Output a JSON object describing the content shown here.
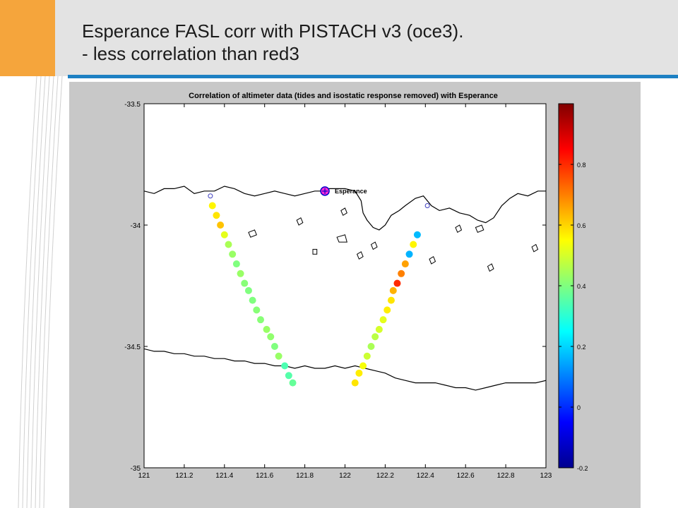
{
  "slide": {
    "title_line1": "Esperance FASL corr with PISTACH v3 (oce3).",
    "title_line2": "- less correlation than red3",
    "colors": {
      "header_bg": "#e3e3e3",
      "orange": "#f5a53c",
      "blue": "#1d80c3"
    }
  },
  "chart_data": {
    "type": "scatter",
    "title": "Correlation of altimeter data (tides and isostatic response removed) with Esperance",
    "xlabel": "",
    "ylabel": "",
    "xlim": [
      121,
      123
    ],
    "ylim": [
      -35,
      -33.5
    ],
    "x_ticks": [
      "121",
      "121.2",
      "121.4",
      "121.6",
      "121.8",
      "122",
      "122.2",
      "122.4",
      "122.6",
      "122.8",
      "123"
    ],
    "y_ticks": [
      "-33.5",
      "-34",
      "-34.5",
      "-35"
    ],
    "grid": false,
    "colormap": "jet",
    "colorbar": {
      "min": -0.2,
      "max": 1.0,
      "ticks": [
        "0.8",
        "0.6",
        "0.4",
        "0.2",
        "0",
        "-0.2"
      ]
    },
    "station": {
      "name": "Esperance",
      "lon": 121.9,
      "lat": -33.86
    },
    "tracks": [
      {
        "points": [
          {
            "lon": 121.34,
            "lat": -33.92,
            "corr": 0.56
          },
          {
            "lon": 121.36,
            "lat": -33.96,
            "corr": 0.58
          },
          {
            "lon": 121.38,
            "lat": -34.0,
            "corr": 0.62
          },
          {
            "lon": 121.4,
            "lat": -34.04,
            "corr": 0.52
          },
          {
            "lon": 121.42,
            "lat": -34.08,
            "corr": 0.45
          },
          {
            "lon": 121.44,
            "lat": -34.12,
            "corr": 0.43
          },
          {
            "lon": 121.46,
            "lat": -34.16,
            "corr": 0.4
          },
          {
            "lon": 121.48,
            "lat": -34.2,
            "corr": 0.43
          },
          {
            "lon": 121.5,
            "lat": -34.24,
            "corr": 0.41
          },
          {
            "lon": 121.52,
            "lat": -34.27,
            "corr": 0.4
          },
          {
            "lon": 121.54,
            "lat": -34.31,
            "corr": 0.4
          },
          {
            "lon": 121.56,
            "lat": -34.35,
            "corr": 0.41
          },
          {
            "lon": 121.58,
            "lat": -34.39,
            "corr": 0.41
          },
          {
            "lon": 121.61,
            "lat": -34.43,
            "corr": 0.43
          },
          {
            "lon": 121.63,
            "lat": -34.46,
            "corr": 0.42
          },
          {
            "lon": 121.65,
            "lat": -34.5,
            "corr": 0.4
          },
          {
            "lon": 121.67,
            "lat": -34.54,
            "corr": 0.43
          },
          {
            "lon": 121.7,
            "lat": -34.58,
            "corr": 0.34
          },
          {
            "lon": 121.72,
            "lat": -34.62,
            "corr": 0.35
          },
          {
            "lon": 121.74,
            "lat": -34.65,
            "corr": 0.37
          }
        ]
      },
      {
        "points": [
          {
            "lon": 122.36,
            "lat": -34.04,
            "corr": 0.17
          },
          {
            "lon": 122.34,
            "lat": -34.08,
            "corr": 0.56
          },
          {
            "lon": 122.32,
            "lat": -34.12,
            "corr": 0.16
          },
          {
            "lon": 122.3,
            "lat": -34.16,
            "corr": 0.66
          },
          {
            "lon": 122.28,
            "lat": -34.2,
            "corr": 0.7
          },
          {
            "lon": 122.26,
            "lat": -34.24,
            "corr": 0.8
          },
          {
            "lon": 122.24,
            "lat": -34.27,
            "corr": 0.64
          },
          {
            "lon": 122.23,
            "lat": -34.31,
            "corr": 0.58
          },
          {
            "lon": 122.21,
            "lat": -34.35,
            "corr": 0.57
          },
          {
            "lon": 122.19,
            "lat": -34.39,
            "corr": 0.52
          },
          {
            "lon": 122.17,
            "lat": -34.43,
            "corr": 0.5
          },
          {
            "lon": 122.15,
            "lat": -34.46,
            "corr": 0.47
          },
          {
            "lon": 122.13,
            "lat": -34.5,
            "corr": 0.45
          },
          {
            "lon": 122.11,
            "lat": -34.54,
            "corr": 0.49
          },
          {
            "lon": 122.09,
            "lat": -34.58,
            "corr": 0.54
          },
          {
            "lon": 122.07,
            "lat": -34.61,
            "corr": 0.57
          },
          {
            "lon": 122.05,
            "lat": -34.65,
            "corr": 0.58
          }
        ]
      }
    ],
    "open_markers": [
      {
        "lon": 121.33,
        "lat": -33.88
      },
      {
        "lon": 122.41,
        "lat": -33.92
      }
    ],
    "coastline": [
      [
        121.0,
        -33.86
      ],
      [
        121.05,
        -33.87
      ],
      [
        121.1,
        -33.85
      ],
      [
        121.15,
        -33.85
      ],
      [
        121.2,
        -33.84
      ],
      [
        121.25,
        -33.87
      ],
      [
        121.3,
        -33.86
      ],
      [
        121.35,
        -33.86
      ],
      [
        121.4,
        -33.84
      ],
      [
        121.45,
        -33.85
      ],
      [
        121.5,
        -33.87
      ],
      [
        121.55,
        -33.88
      ],
      [
        121.6,
        -33.87
      ],
      [
        121.65,
        -33.86
      ],
      [
        121.7,
        -33.87
      ],
      [
        121.75,
        -33.88
      ],
      [
        121.8,
        -33.87
      ],
      [
        121.85,
        -33.86
      ],
      [
        121.88,
        -33.86
      ],
      [
        121.92,
        -33.85
      ],
      [
        122.0,
        -33.85
      ],
      [
        122.05,
        -33.86
      ],
      [
        122.08,
        -33.9
      ],
      [
        122.09,
        -33.95
      ],
      [
        122.11,
        -33.98
      ],
      [
        122.14,
        -34.01
      ],
      [
        122.17,
        -34.02
      ],
      [
        122.2,
        -34.0
      ],
      [
        122.23,
        -33.96
      ],
      [
        122.27,
        -33.94
      ],
      [
        122.3,
        -33.92
      ],
      [
        122.35,
        -33.89
      ],
      [
        122.39,
        -33.88
      ],
      [
        122.43,
        -33.92
      ],
      [
        122.47,
        -33.94
      ],
      [
        122.52,
        -33.93
      ],
      [
        122.57,
        -33.95
      ],
      [
        122.62,
        -33.96
      ],
      [
        122.66,
        -33.98
      ],
      [
        122.7,
        -33.99
      ],
      [
        122.74,
        -33.97
      ],
      [
        122.78,
        -33.92
      ],
      [
        122.82,
        -33.89
      ],
      [
        122.86,
        -33.87
      ],
      [
        122.91,
        -33.88
      ],
      [
        122.96,
        -33.86
      ],
      [
        123.0,
        -33.86
      ]
    ],
    "shelf_contour": [
      [
        121.0,
        -34.51
      ],
      [
        121.05,
        -34.52
      ],
      [
        121.1,
        -34.52
      ],
      [
        121.15,
        -34.53
      ],
      [
        121.2,
        -34.53
      ],
      [
        121.25,
        -34.54
      ],
      [
        121.3,
        -34.54
      ],
      [
        121.35,
        -34.55
      ],
      [
        121.4,
        -34.55
      ],
      [
        121.45,
        -34.56
      ],
      [
        121.5,
        -34.56
      ],
      [
        121.55,
        -34.57
      ],
      [
        121.6,
        -34.57
      ],
      [
        121.65,
        -34.58
      ],
      [
        121.7,
        -34.58
      ],
      [
        121.75,
        -34.59
      ],
      [
        121.8,
        -34.58
      ],
      [
        121.85,
        -34.59
      ],
      [
        121.9,
        -34.59
      ],
      [
        121.95,
        -34.58
      ],
      [
        122.0,
        -34.59
      ],
      [
        122.05,
        -34.58
      ],
      [
        122.1,
        -34.59
      ],
      [
        122.15,
        -34.6
      ],
      [
        122.2,
        -34.61
      ],
      [
        122.25,
        -34.63
      ],
      [
        122.3,
        -34.64
      ],
      [
        122.35,
        -34.65
      ],
      [
        122.4,
        -34.65
      ],
      [
        122.45,
        -34.65
      ],
      [
        122.5,
        -34.66
      ],
      [
        122.55,
        -34.67
      ],
      [
        122.6,
        -34.67
      ],
      [
        122.65,
        -34.68
      ],
      [
        122.7,
        -34.67
      ],
      [
        122.75,
        -34.66
      ],
      [
        122.8,
        -34.65
      ],
      [
        122.85,
        -34.65
      ],
      [
        122.9,
        -34.65
      ],
      [
        122.95,
        -34.65
      ],
      [
        123.0,
        -34.64
      ]
    ],
    "islands": [
      [
        [
          121.52,
          -34.03
        ],
        [
          121.55,
          -34.02
        ],
        [
          121.56,
          -34.04
        ],
        [
          121.53,
          -34.05
        ]
      ],
      [
        [
          121.76,
          -33.98
        ],
        [
          121.78,
          -33.97
        ],
        [
          121.79,
          -33.99
        ],
        [
          121.77,
          -34.0
        ]
      ],
      [
        [
          121.96,
          -34.05
        ],
        [
          122.0,
          -34.04
        ],
        [
          122.01,
          -34.07
        ],
        [
          121.97,
          -34.07
        ]
      ],
      [
        [
          122.06,
          -34.12
        ],
        [
          122.08,
          -34.11
        ],
        [
          122.09,
          -34.13
        ],
        [
          122.07,
          -34.14
        ]
      ],
      [
        [
          121.98,
          -33.94
        ],
        [
          122.0,
          -33.93
        ],
        [
          122.01,
          -33.95
        ],
        [
          121.99,
          -33.96
        ]
      ],
      [
        [
          122.13,
          -34.08
        ],
        [
          122.15,
          -34.07
        ],
        [
          122.16,
          -34.09
        ],
        [
          122.14,
          -34.1
        ]
      ],
      [
        [
          122.55,
          -34.01
        ],
        [
          122.57,
          -34.0
        ],
        [
          122.58,
          -34.02
        ],
        [
          122.56,
          -34.03
        ]
      ],
      [
        [
          122.65,
          -34.01
        ],
        [
          122.68,
          -34.0
        ],
        [
          122.69,
          -34.02
        ],
        [
          122.66,
          -34.03
        ]
      ],
      [
        [
          121.84,
          -34.1
        ],
        [
          121.86,
          -34.1
        ],
        [
          121.86,
          -34.12
        ],
        [
          121.84,
          -34.12
        ]
      ],
      [
        [
          122.42,
          -34.14
        ],
        [
          122.44,
          -34.13
        ],
        [
          122.45,
          -34.15
        ],
        [
          122.43,
          -34.16
        ]
      ],
      [
        [
          122.71,
          -34.17
        ],
        [
          122.73,
          -34.16
        ],
        [
          122.74,
          -34.18
        ],
        [
          122.72,
          -34.19
        ]
      ],
      [
        [
          122.93,
          -34.09
        ],
        [
          122.95,
          -34.08
        ],
        [
          122.96,
          -34.1
        ],
        [
          122.94,
          -34.11
        ]
      ]
    ]
  }
}
